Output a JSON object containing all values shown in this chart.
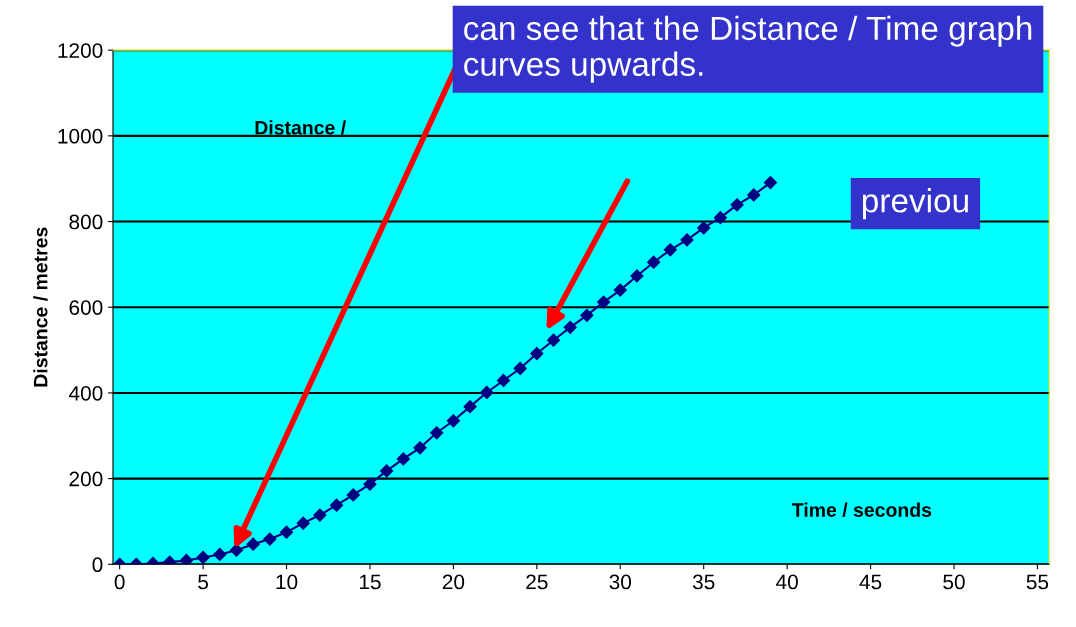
{
  "chart_data": {
    "type": "line",
    "title": "Distance /",
    "xlabel": "Time / seconds",
    "ylabel": "Distance / metres",
    "x": [
      0,
      1,
      2,
      3,
      4,
      5,
      6,
      7,
      8,
      9,
      10,
      11,
      12,
      13,
      14,
      15,
      16,
      17,
      18,
      19,
      20,
      21,
      22,
      23,
      24,
      25,
      26,
      27,
      28,
      29,
      30,
      31,
      32,
      33,
      34,
      35,
      36,
      37,
      38,
      39
    ],
    "series": [
      {
        "color": "#000080",
        "values": [
          0,
          0,
          2,
          5,
          9,
          16,
          23,
          33,
          47,
          59,
          75,
          96,
          115,
          138,
          162,
          187,
          218,
          246,
          272,
          307,
          335,
          368,
          401,
          429,
          457,
          492,
          523,
          553,
          581,
          612,
          640,
          673,
          705,
          734,
          757,
          785,
          809,
          839,
          862,
          891
        ]
      }
    ],
    "xlim": [
      -0.4,
      55.7
    ],
    "ylim": [
      0,
      1200
    ],
    "xticks": [
      0,
      5,
      10,
      15,
      20,
      25,
      30,
      35,
      40,
      45,
      50,
      55
    ],
    "yticks": [
      0,
      200,
      400,
      600,
      800,
      1000,
      1200
    ],
    "grid": "y",
    "marker": "diamond",
    "line_style": "solid",
    "annotations": [
      "can see that the Distance / Time graph curves upwards.",
      "previou"
    ]
  }
}
